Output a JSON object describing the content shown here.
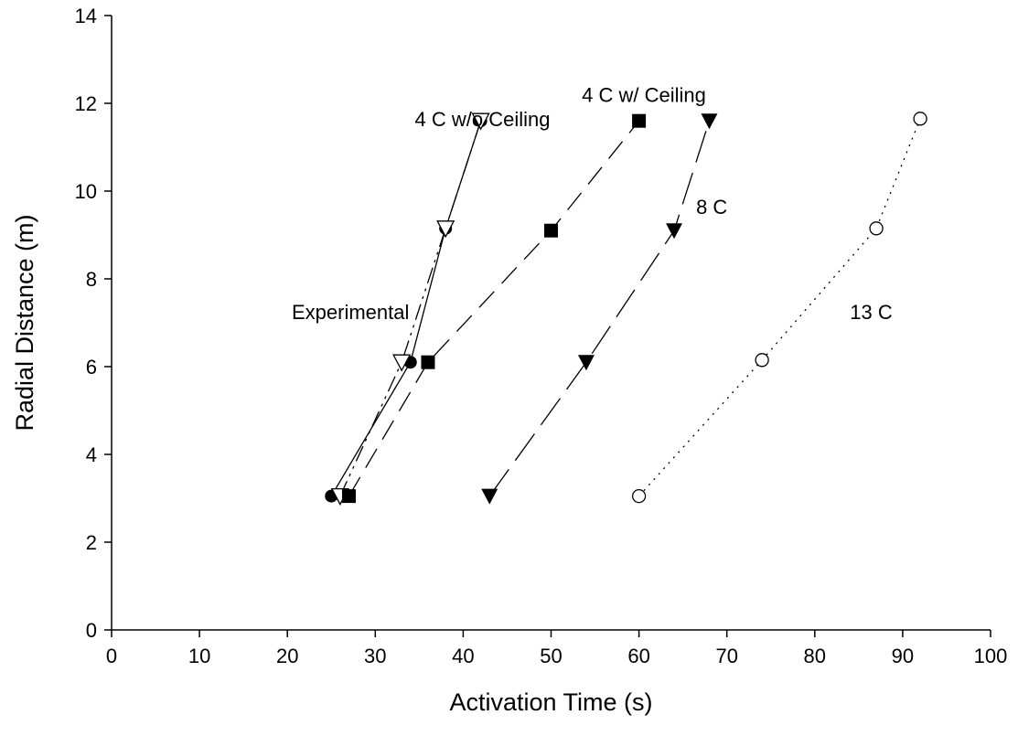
{
  "chart_data": {
    "type": "scatter",
    "title": "",
    "xlabel": "Activation Time (s)",
    "ylabel": "Radial Distance (m)",
    "xlim": [
      0,
      100
    ],
    "ylim": [
      0,
      14
    ],
    "x_ticks": [
      0,
      10,
      20,
      30,
      40,
      50,
      60,
      70,
      80,
      90,
      100
    ],
    "y_ticks": [
      0,
      2,
      4,
      6,
      8,
      10,
      12,
      14
    ],
    "grid": false,
    "legend": "none",
    "series": [
      {
        "name": "Experimental",
        "marker": "filled-circle",
        "line_style": "solid",
        "points": [
          {
            "x": 25,
            "y": 3.05
          },
          {
            "x": 34,
            "y": 6.1
          },
          {
            "x": 38,
            "y": 9.15
          },
          {
            "x": 42,
            "y": 11.6
          }
        ]
      },
      {
        "name": "4 C w/o Ceiling",
        "marker": "open-triangle-down",
        "line_style": "dash-dot-dot",
        "points": [
          {
            "x": 26,
            "y": 3.05
          },
          {
            "x": 33,
            "y": 6.1
          },
          {
            "x": 38,
            "y": 9.15
          },
          {
            "x": 42,
            "y": 11.6
          }
        ]
      },
      {
        "name": "4 C w/ Ceiling",
        "marker": "filled-square",
        "line_style": "medium-dash",
        "points": [
          {
            "x": 27,
            "y": 3.05
          },
          {
            "x": 36,
            "y": 6.1
          },
          {
            "x": 50,
            "y": 9.1
          },
          {
            "x": 60,
            "y": 11.6
          }
        ]
      },
      {
        "name": "8 C",
        "marker": "filled-triangle-down",
        "line_style": "long-dash",
        "points": [
          {
            "x": 43,
            "y": 3.05
          },
          {
            "x": 54,
            "y": 6.1
          },
          {
            "x": 64,
            "y": 9.1
          },
          {
            "x": 68,
            "y": 11.6
          }
        ]
      },
      {
        "name": "13 C",
        "marker": "open-circle",
        "line_style": "dotted",
        "points": [
          {
            "x": 60,
            "y": 3.05
          },
          {
            "x": 74,
            "y": 6.15
          },
          {
            "x": 87,
            "y": 9.15
          },
          {
            "x": 92,
            "y": 11.65
          }
        ]
      }
    ],
    "annotations": [
      {
        "text": "4 C w/o Ceiling",
        "x": 34.5,
        "y": 11.65
      },
      {
        "text": "4 C w/ Ceiling",
        "x": 53.5,
        "y": 12.2
      },
      {
        "text": "8 C",
        "x": 66.5,
        "y": 9.65
      },
      {
        "text": "Experimental",
        "x": 20.5,
        "y": 7.25
      },
      {
        "text": "13 C",
        "x": 84,
        "y": 7.25
      }
    ]
  }
}
